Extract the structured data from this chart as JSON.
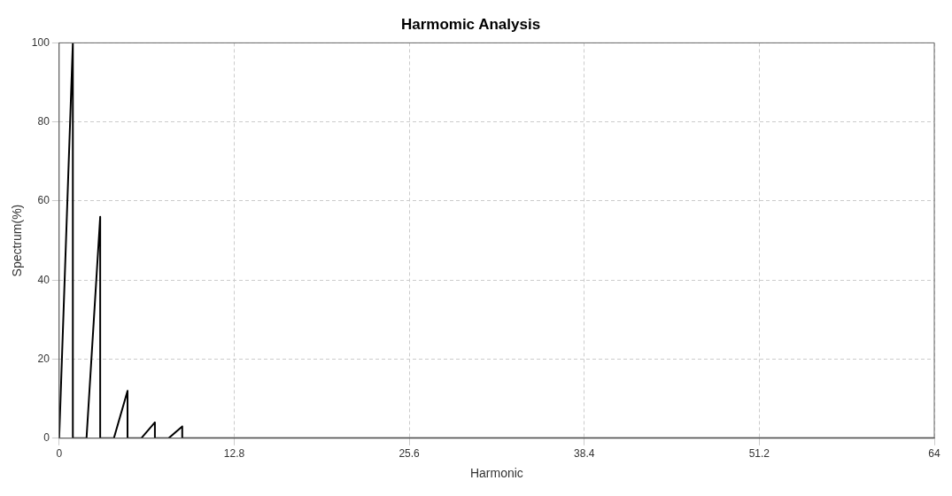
{
  "chart_data": {
    "type": "line",
    "title": "Harmomic Analysis",
    "xlabel": "Harmonic",
    "ylabel": "Spectrum(%)",
    "series": [
      {
        "color": "#000000",
        "x": [
          0,
          1,
          1,
          2,
          3,
          3,
          4,
          5,
          5,
          6,
          7,
          7,
          8,
          9,
          9,
          64
        ],
        "values": [
          0,
          100,
          0,
          0,
          56,
          0,
          0,
          12,
          0,
          0,
          4,
          0,
          0,
          3,
          0,
          0
        ]
      }
    ],
    "xlim": [
      0,
      64
    ],
    "xticks": [
      0,
      12.8,
      25.6,
      38.4,
      51.2,
      64
    ],
    "ylim": [
      0,
      100
    ],
    "yticks": [
      0,
      20,
      40,
      60,
      80,
      100
    ],
    "grid": true,
    "legend": false,
    "marker": "none",
    "line_style": "solid"
  }
}
